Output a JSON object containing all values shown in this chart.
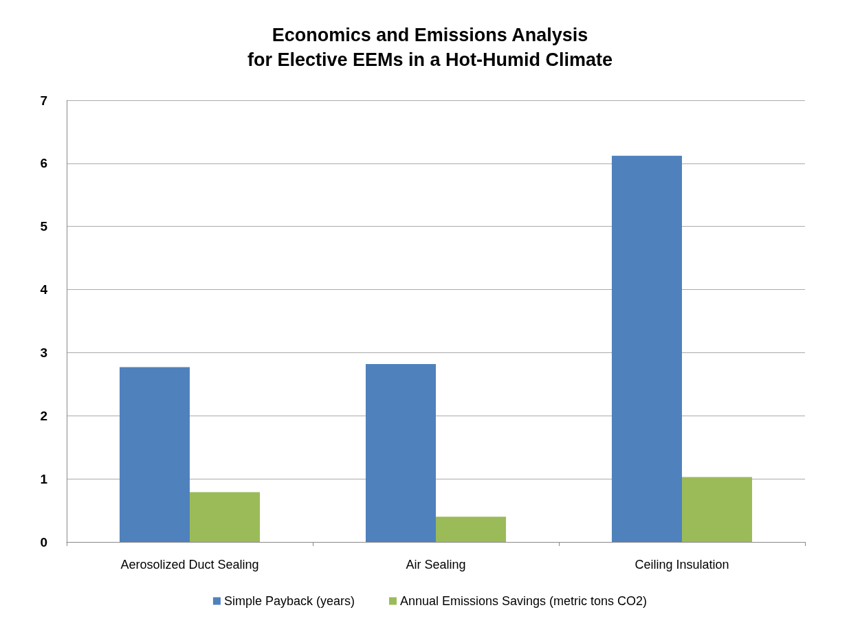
{
  "chart_data": {
    "type": "bar",
    "title": "Economics and Emissions Analysis\nfor Elective EEMs in a Hot-Humid Climate",
    "categories": [
      "Aerosolized Duct Sealing",
      "Air Sealing",
      "Ceiling Insulation"
    ],
    "series": [
      {
        "name": "Simple Payback (years)",
        "color": "#4f81bd",
        "values": [
          2.77,
          2.82,
          6.12
        ]
      },
      {
        "name": "Annual Emissions Savings (metric tons CO2)",
        "color": "#9bbb59",
        "values": [
          0.79,
          0.4,
          1.03
        ]
      }
    ],
    "ylim": [
      0,
      7
    ],
    "yticks": [
      0,
      1,
      2,
      3,
      4,
      5,
      6,
      7
    ],
    "grid": "y",
    "legend": "bottom"
  }
}
